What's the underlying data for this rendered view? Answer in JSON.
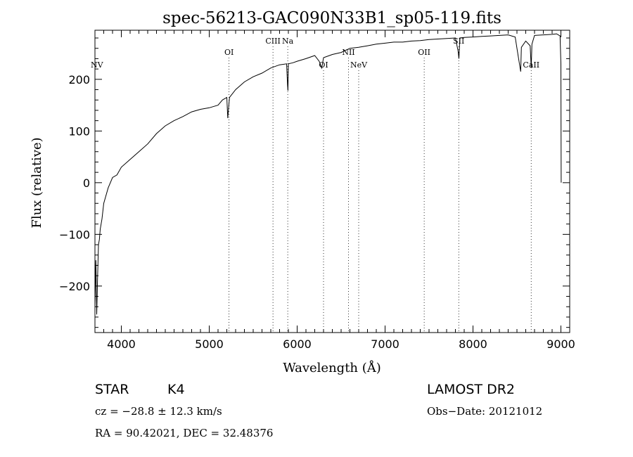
{
  "chart_data": {
    "type": "line",
    "title": "spec-56213-GAC090N33B1_sp05-119.fits",
    "xlabel": "Wavelength (Å)",
    "ylabel": "Flux (relative)",
    "xlim": [
      3700,
      9100
    ],
    "ylim": [
      -290,
      295
    ],
    "xticks": [
      4000,
      5000,
      6000,
      7000,
      8000,
      9000
    ],
    "yticks": [
      -200,
      -100,
      0,
      100,
      200
    ],
    "grid": false,
    "series": [
      {
        "x": [
          3700,
          3710,
          3720,
          3730,
          3740,
          3750,
          3760,
          3780,
          3800,
          3850,
          3900,
          3950,
          4000,
          4100,
          4200,
          4300,
          4400,
          4500,
          4600,
          4700,
          4800,
          4900,
          5000,
          5100,
          5150,
          5200,
          5210,
          5230,
          5300,
          5400,
          5500,
          5600,
          5700,
          5800,
          5880,
          5890,
          5895,
          5900,
          5950,
          6000,
          6100,
          6200,
          6250,
          6280,
          6300,
          6400,
          6500,
          6600,
          6700,
          6800,
          6900,
          7000,
          7100,
          7200,
          7300,
          7400,
          7500,
          7600,
          7700,
          7800,
          7830,
          7840,
          7850,
          7900,
          8000,
          8100,
          8200,
          8300,
          8400,
          8480,
          8500,
          8542,
          8550,
          8600,
          8650,
          8662,
          8670,
          8700,
          8800,
          8900,
          8950,
          8990,
          9000,
          9003
        ],
        "values": [
          -240,
          -150,
          -255,
          -180,
          -120,
          -110,
          -90,
          -70,
          -40,
          -10,
          10,
          15,
          30,
          45,
          60,
          75,
          95,
          110,
          120,
          128,
          137,
          142,
          145,
          150,
          160,
          165,
          125,
          165,
          180,
          195,
          205,
          212,
          222,
          228,
          230,
          190,
          178,
          230,
          232,
          235,
          240,
          246,
          235,
          222,
          242,
          248,
          252,
          260,
          262,
          265,
          268,
          270,
          272,
          272,
          274,
          275,
          277,
          278,
          279,
          280,
          255,
          240,
          280,
          281,
          282,
          283,
          284,
          285,
          286,
          282,
          260,
          215,
          262,
          274,
          265,
          222,
          268,
          285,
          286,
          287,
          288,
          284,
          230,
          0
        ]
      }
    ],
    "line_markers": [
      {
        "label": "NV",
        "x": 3700
      },
      {
        "label": "OI",
        "x": 5225
      },
      {
        "label": "CIII",
        "x": 5725
      },
      {
        "label": "Na",
        "x": 5893
      },
      {
        "label": "OI",
        "x": 6300
      },
      {
        "label": "NII",
        "x": 6584
      },
      {
        "label": "NeV",
        "x": 6700
      },
      {
        "label": "OII",
        "x": 7445
      },
      {
        "label": "SII",
        "x": 7838
      },
      {
        "label": "CaII",
        "x": 8662
      }
    ]
  },
  "info": {
    "class": "STAR",
    "subclass": "K4",
    "survey": "LAMOST DR2",
    "cz": "cz = −28.8 ± 12.3 km/s",
    "obsdate": "Obs−Date: 20121012",
    "radec": "RA =  90.42021, DEC =  32.48376"
  }
}
